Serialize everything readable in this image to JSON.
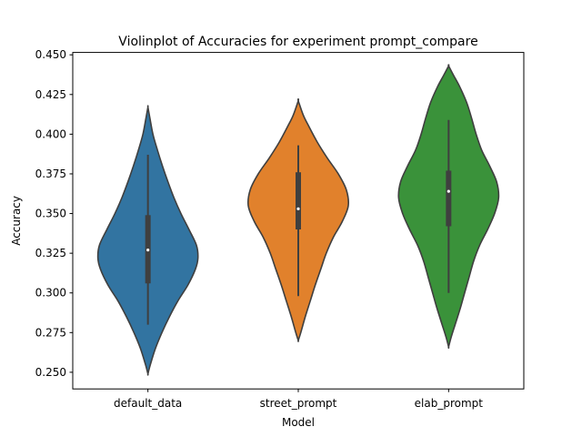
{
  "chart_data": {
    "type": "violin",
    "title": "Violinplot of Accuracies for experiment prompt_compare",
    "xlabel": "Model",
    "ylabel": "Accuracy",
    "ylim": [
      0.2395,
      0.4515
    ],
    "yticks": [
      "0.250",
      "0.275",
      "0.300",
      "0.325",
      "0.350",
      "0.375",
      "0.400",
      "0.425",
      "0.450"
    ],
    "ytick_values": [
      0.25,
      0.275,
      0.3,
      0.325,
      0.35,
      0.375,
      0.4,
      0.425,
      0.45
    ],
    "grid": false,
    "categories": [
      "default_data",
      "street_prompt",
      "elab_prompt"
    ],
    "series": [
      {
        "category": "default_data",
        "color": "#3274a1",
        "kde_min": 0.249,
        "kde_max": 0.417,
        "median": 0.327,
        "q1": 0.306,
        "q3": 0.349,
        "whisker_low": 0.28,
        "whisker_high": 0.387,
        "profile": [
          [
            0.249,
            0.0
          ],
          [
            0.255,
            0.05
          ],
          [
            0.265,
            0.15
          ],
          [
            0.275,
            0.28
          ],
          [
            0.285,
            0.43
          ],
          [
            0.295,
            0.6
          ],
          [
            0.305,
            0.8
          ],
          [
            0.315,
            0.95
          ],
          [
            0.322,
            1.0
          ],
          [
            0.33,
            0.97
          ],
          [
            0.34,
            0.82
          ],
          [
            0.35,
            0.66
          ],
          [
            0.36,
            0.52
          ],
          [
            0.37,
            0.4
          ],
          [
            0.38,
            0.29
          ],
          [
            0.39,
            0.19
          ],
          [
            0.4,
            0.1
          ],
          [
            0.41,
            0.04
          ],
          [
            0.417,
            0.0
          ]
        ]
      },
      {
        "category": "street_prompt",
        "color": "#e1812c",
        "kde_min": 0.27,
        "kde_max": 0.421,
        "median": 0.353,
        "q1": 0.34,
        "q3": 0.376,
        "whisker_low": 0.298,
        "whisker_high": 0.393,
        "profile": [
          [
            0.27,
            0.0
          ],
          [
            0.275,
            0.05
          ],
          [
            0.285,
            0.14
          ],
          [
            0.295,
            0.24
          ],
          [
            0.305,
            0.34
          ],
          [
            0.315,
            0.45
          ],
          [
            0.325,
            0.56
          ],
          [
            0.335,
            0.7
          ],
          [
            0.345,
            0.88
          ],
          [
            0.355,
            1.0
          ],
          [
            0.365,
            0.96
          ],
          [
            0.375,
            0.8
          ],
          [
            0.385,
            0.58
          ],
          [
            0.395,
            0.38
          ],
          [
            0.405,
            0.21
          ],
          [
            0.412,
            0.1
          ],
          [
            0.421,
            0.0
          ]
        ]
      },
      {
        "category": "elab_prompt",
        "color": "#3a923a",
        "kde_min": 0.266,
        "kde_max": 0.443,
        "median": 0.364,
        "q1": 0.342,
        "q3": 0.377,
        "whisker_low": 0.3,
        "whisker_high": 0.409,
        "profile": [
          [
            0.266,
            0.0
          ],
          [
            0.272,
            0.05
          ],
          [
            0.28,
            0.13
          ],
          [
            0.29,
            0.23
          ],
          [
            0.3,
            0.32
          ],
          [
            0.31,
            0.41
          ],
          [
            0.32,
            0.5
          ],
          [
            0.33,
            0.62
          ],
          [
            0.34,
            0.78
          ],
          [
            0.35,
            0.92
          ],
          [
            0.36,
            1.0
          ],
          [
            0.37,
            0.96
          ],
          [
            0.38,
            0.82
          ],
          [
            0.39,
            0.66
          ],
          [
            0.4,
            0.55
          ],
          [
            0.41,
            0.46
          ],
          [
            0.42,
            0.36
          ],
          [
            0.43,
            0.22
          ],
          [
            0.437,
            0.1
          ],
          [
            0.443,
            0.0
          ]
        ]
      }
    ]
  }
}
